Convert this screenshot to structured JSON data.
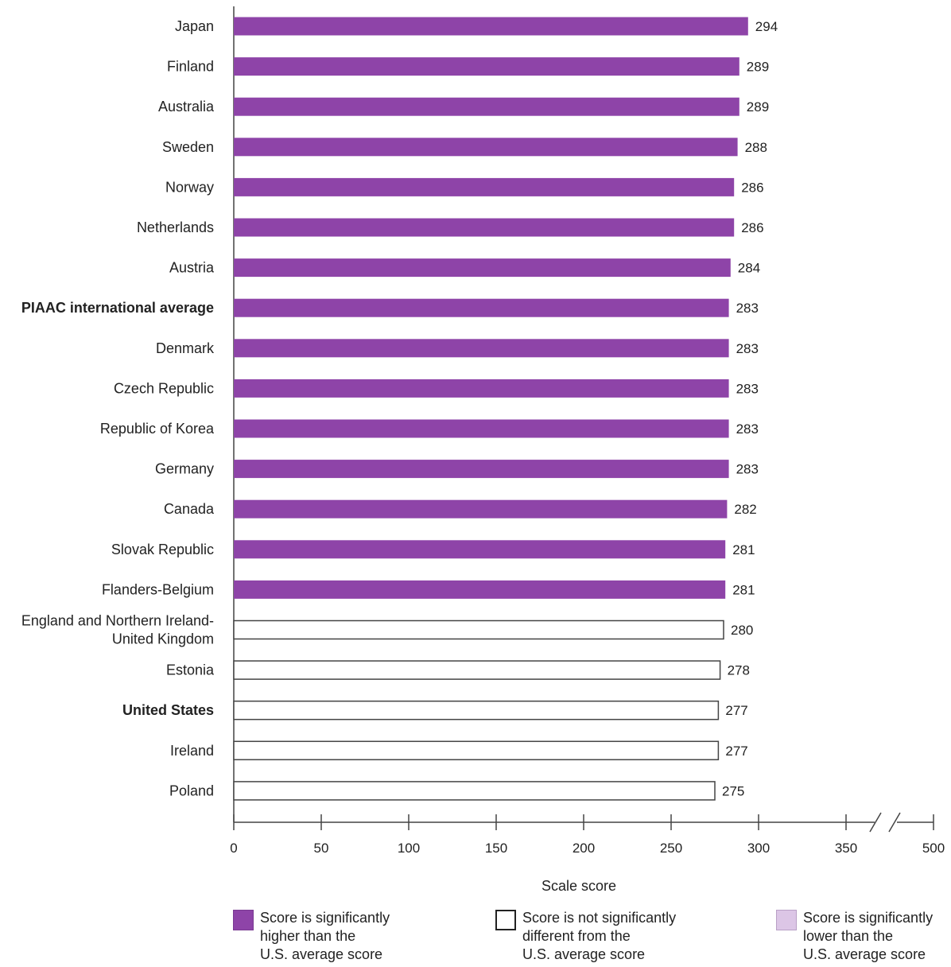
{
  "colors": {
    "higher": "#8e44a8",
    "not_different": "#ffffff",
    "lower": "#dcc6e6",
    "outline": "#444444"
  },
  "chart_data": {
    "type": "bar",
    "orientation": "horizontal",
    "xlabel": "Scale score",
    "xlim": [
      0,
      500
    ],
    "axis_break": [
      360,
      500
    ],
    "x_ticks": [
      0,
      50,
      100,
      150,
      200,
      250,
      300,
      350,
      500
    ],
    "categories": [
      {
        "label": [
          "Japan"
        ],
        "value": 294,
        "status": "higher",
        "bold": false
      },
      {
        "label": [
          "Finland"
        ],
        "value": 289,
        "status": "higher",
        "bold": false
      },
      {
        "label": [
          "Australia"
        ],
        "value": 289,
        "status": "higher",
        "bold": false
      },
      {
        "label": [
          "Sweden"
        ],
        "value": 288,
        "status": "higher",
        "bold": false
      },
      {
        "label": [
          "Norway"
        ],
        "value": 286,
        "status": "higher",
        "bold": false
      },
      {
        "label": [
          "Netherlands"
        ],
        "value": 286,
        "status": "higher",
        "bold": false
      },
      {
        "label": [
          "Austria"
        ],
        "value": 284,
        "status": "higher",
        "bold": false
      },
      {
        "label": [
          "PIAAC international average"
        ],
        "value": 283,
        "status": "higher",
        "bold": true
      },
      {
        "label": [
          "Denmark"
        ],
        "value": 283,
        "status": "higher",
        "bold": false
      },
      {
        "label": [
          "Czech Republic"
        ],
        "value": 283,
        "status": "higher",
        "bold": false
      },
      {
        "label": [
          "Republic of Korea"
        ],
        "value": 283,
        "status": "higher",
        "bold": false
      },
      {
        "label": [
          "Germany"
        ],
        "value": 283,
        "status": "higher",
        "bold": false
      },
      {
        "label": [
          "Canada"
        ],
        "value": 282,
        "status": "higher",
        "bold": false
      },
      {
        "label": [
          "Slovak Republic"
        ],
        "value": 281,
        "status": "higher",
        "bold": false
      },
      {
        "label": [
          "Flanders-Belgium"
        ],
        "value": 281,
        "status": "higher",
        "bold": false
      },
      {
        "label": [
          "England and Northern Ireland-",
          "United Kingdom"
        ],
        "value": 280,
        "status": "not_different",
        "bold": false
      },
      {
        "label": [
          "Estonia"
        ],
        "value": 278,
        "status": "not_different",
        "bold": false
      },
      {
        "label": [
          "United States"
        ],
        "value": 277,
        "status": "not_different",
        "bold": true
      },
      {
        "label": [
          "Ireland"
        ],
        "value": 277,
        "status": "not_different",
        "bold": false
      },
      {
        "label": [
          "Poland"
        ],
        "value": 275,
        "status": "not_different",
        "bold": false
      }
    ]
  },
  "legend": {
    "higher": [
      "Score is significantly",
      "higher than the",
      "U.S. average score"
    ],
    "not_different": [
      "Score is not significantly",
      "different from the",
      "U.S. average score"
    ],
    "lower": [
      "Score is significantly",
      "lower than the",
      "U.S. average score"
    ]
  }
}
